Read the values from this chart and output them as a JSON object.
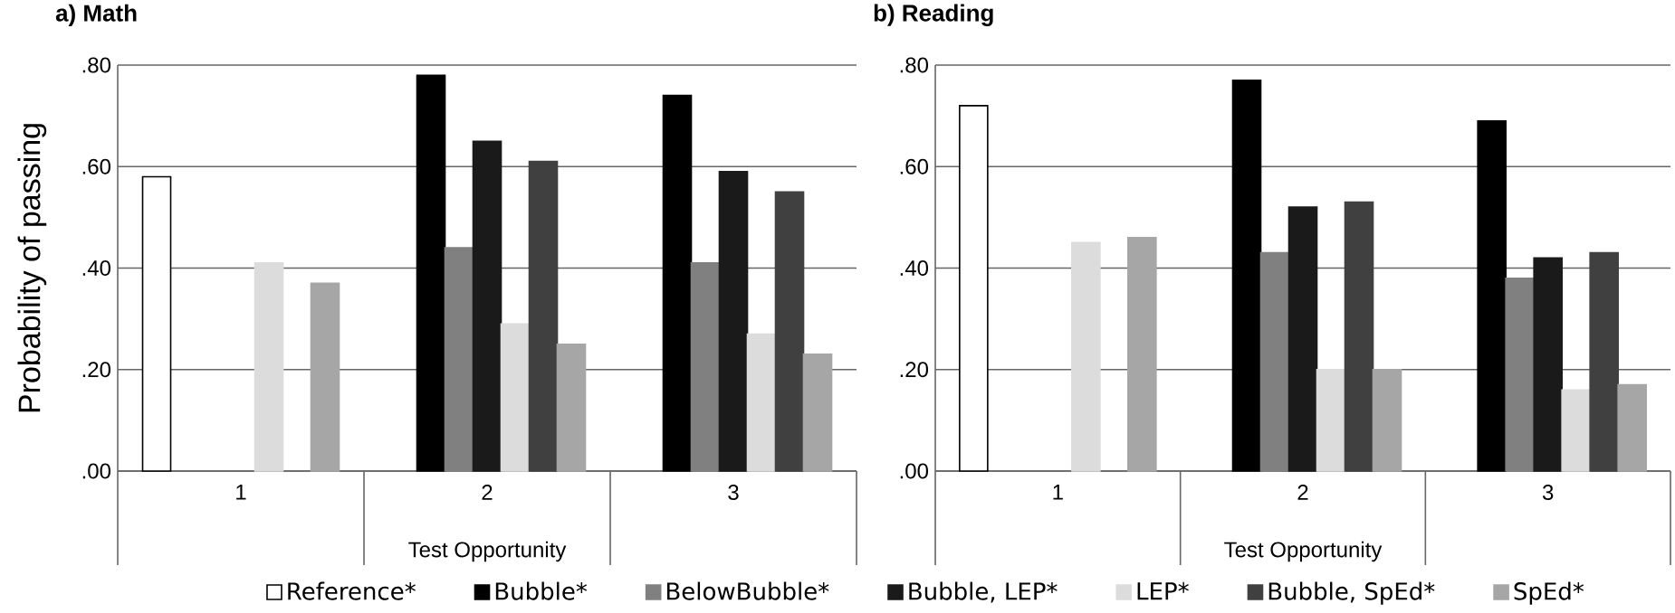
{
  "chart_data": [
    {
      "type": "bar",
      "title": "a) Math",
      "xlabel": "Test Opportunity",
      "ylabel": "Probability of passing",
      "categories": [
        "1",
        "2",
        "3"
      ],
      "series": [
        {
          "name": "Reference*",
          "color": "#ffffff",
          "values": [
            0.58,
            null,
            null
          ]
        },
        {
          "name": "Bubble*",
          "color": "#000000",
          "values": [
            null,
            0.78,
            0.74
          ]
        },
        {
          "name": "BelowBubble*",
          "color": "#808080",
          "values": [
            null,
            0.44,
            0.41
          ]
        },
        {
          "name": "Bubble, LEP*",
          "color": "#1a1a1a",
          "values": [
            null,
            0.65,
            0.59
          ]
        },
        {
          "name": "LEP*",
          "color": "#dcdcdc",
          "values": [
            0.41,
            0.29,
            0.27
          ]
        },
        {
          "name": "Bubble, SpEd*",
          "color": "#404040",
          "values": [
            null,
            0.61,
            0.55
          ]
        },
        {
          "name": "SpEd*",
          "color": "#a6a6a6",
          "values": [
            0.37,
            0.25,
            0.23
          ]
        }
      ],
      "ylim": [
        0,
        0.8
      ],
      "yticks": [
        {
          "value": 0,
          "label": ".00"
        },
        {
          "value": 0.2,
          "label": ".20"
        },
        {
          "value": 0.4,
          "label": ".40"
        },
        {
          "value": 0.6,
          "label": ".60"
        },
        {
          "value": 0.8,
          "label": ".80"
        }
      ],
      "grid": "y",
      "legend": "bottom"
    },
    {
      "type": "bar",
      "title": "b) Reading",
      "xlabel": "Test Opportunity",
      "categories": [
        "1",
        "2",
        "3"
      ],
      "series": [
        {
          "color": "#ffffff",
          "values": [
            0.72,
            null,
            null
          ]
        },
        {
          "color": "#000000",
          "values": [
            null,
            0.77,
            0.69
          ]
        },
        {
          "color": "#808080",
          "values": [
            null,
            0.43,
            0.38
          ]
        },
        {
          "color": "#1a1a1a",
          "values": [
            null,
            0.52,
            0.42
          ]
        },
        {
          "color": "#dcdcdc",
          "values": [
            0.45,
            0.2,
            0.16
          ]
        },
        {
          "color": "#404040",
          "values": [
            null,
            0.53,
            0.43
          ]
        },
        {
          "color": "#a6a6a6",
          "values": [
            0.46,
            0.2,
            0.17
          ]
        }
      ],
      "ylim": [
        0,
        0.8
      ],
      "yticks": [
        {
          "value": 0,
          "label": ".00"
        },
        {
          "value": 0.2,
          "label": ".20"
        },
        {
          "value": 0.4,
          "label": ".40"
        },
        {
          "value": 0.6,
          "label": ".60"
        },
        {
          "value": 0.8,
          "label": ".80"
        }
      ],
      "grid": "y"
    }
  ]
}
